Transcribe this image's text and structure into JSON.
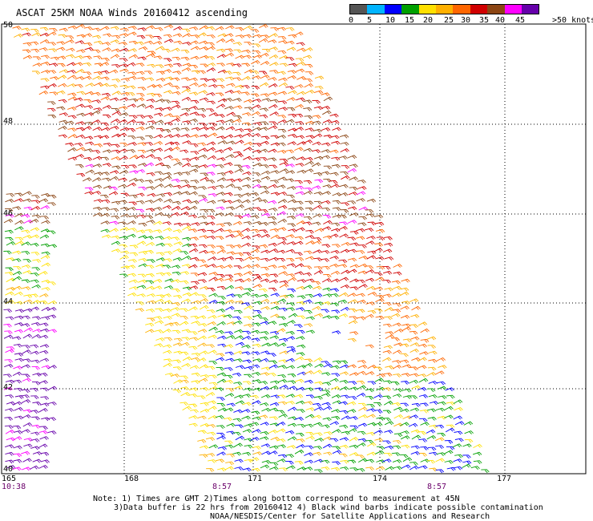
{
  "title": "ASCAT 25KM NOAA Winds 20160412 ascending",
  "legend": {
    "labels": [
      "0",
      "5",
      "10",
      "15",
      "20",
      "25",
      "30",
      "35",
      "40",
      "45",
      ">50 knots"
    ],
    "colors": [
      "#555555",
      "#00b4ff",
      "#0000ff",
      "#00a000",
      "#ffe000",
      "#ffb000",
      "#ff6600",
      "#d00000",
      "#8b4513",
      "#ff00ff",
      "#6600aa"
    ]
  },
  "lat_labels": [
    "50",
    "48",
    "46",
    "44",
    "42",
    "40"
  ],
  "lon_labels": [
    "165",
    "168",
    "171",
    "174",
    "177"
  ],
  "time_labels": [
    "10:38",
    "8:57",
    "8:57"
  ],
  "notes": [
    "Note: 1) Times are GMT 2)Times along bottom correspond to measurement at 45N",
    "3)Data buffer is 22 hrs from 20160412 4) Black wind barbs indicate possible contamination",
    "NOAA/NESDIS/Center for Satellite Applications and Research"
  ]
}
